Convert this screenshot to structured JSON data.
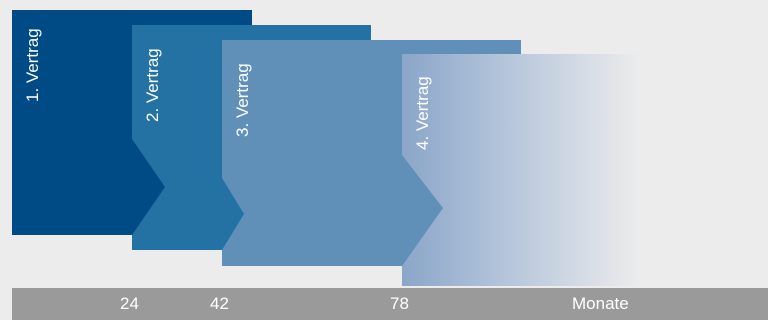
{
  "contracts": [
    {
      "label": "1. Vertrag",
      "color": "#004b85"
    },
    {
      "label": "2. Vertrag",
      "color": "#2472a4"
    },
    {
      "label": "3. Vertrag",
      "color": "#6090b8"
    },
    {
      "label": "4. Vertrag",
      "color_start": "#8aa6c9",
      "color_end": "#ececec"
    }
  ],
  "axis": {
    "ticks": [
      "24",
      "42",
      "78"
    ],
    "unit": "Monate",
    "bar_color": "#9a9a9a"
  }
}
